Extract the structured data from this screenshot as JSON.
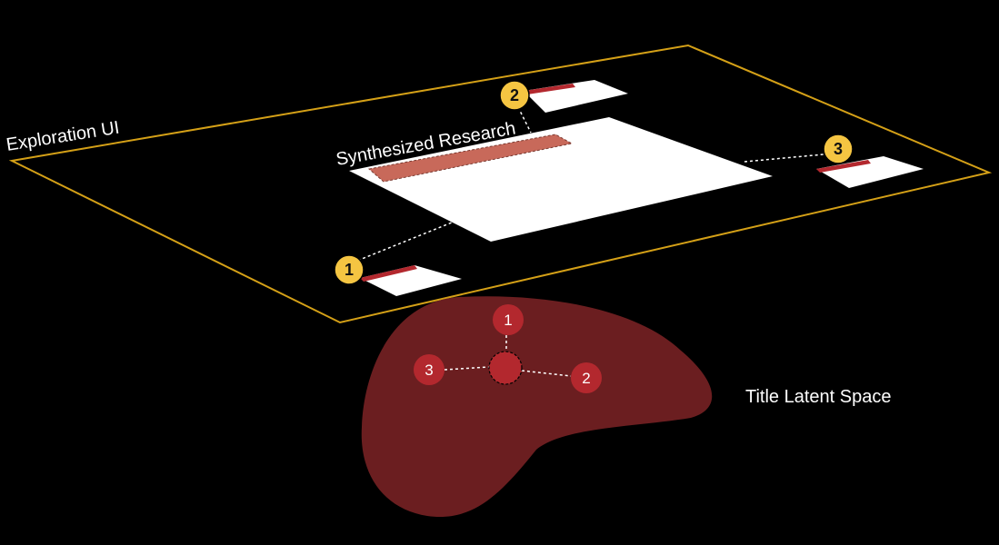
{
  "labels": {
    "exploration_ui": "Exploration UI",
    "synthesized_research": "Synthesized Research",
    "title_latent_space": "Title Latent Space"
  },
  "markers": {
    "ui": [
      "1",
      "2",
      "3"
    ],
    "latent": [
      "1",
      "2",
      "3"
    ]
  },
  "colors": {
    "background": "#000000",
    "plane_outline": "#d4a017",
    "yellow_marker": "#f5c542",
    "latent_blob": "#6b1e20",
    "latent_node": "#b3282e",
    "highlight": "#c8695a",
    "card": "#ffffff",
    "card_accent": "#b3282e"
  }
}
